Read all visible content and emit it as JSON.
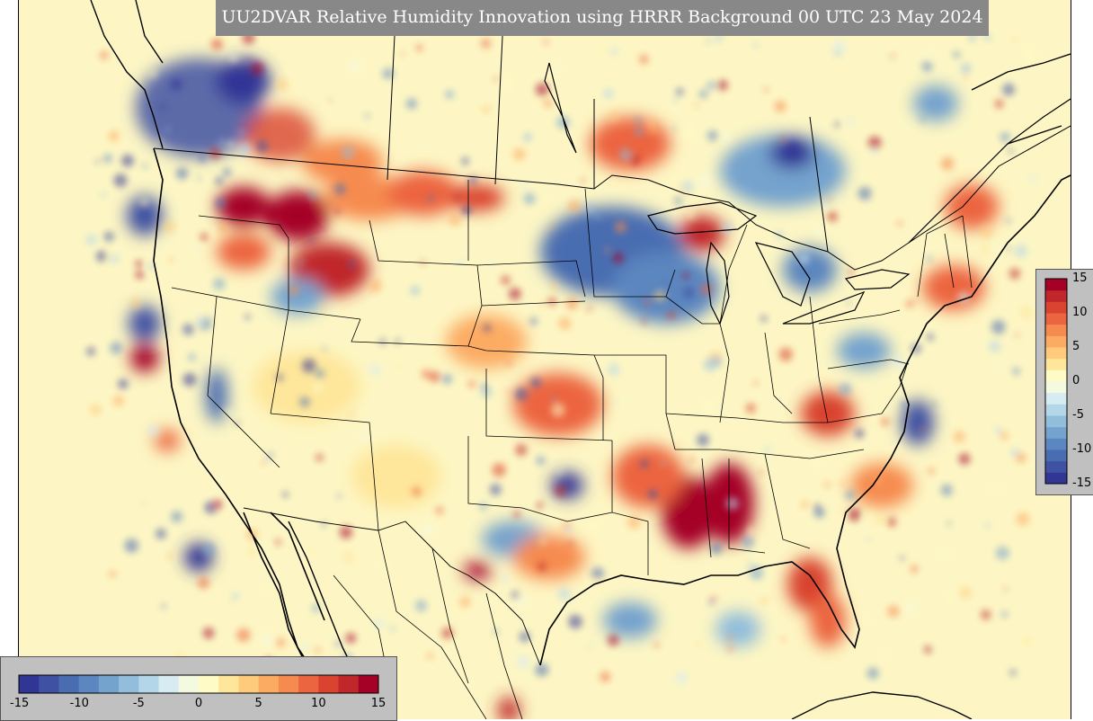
{
  "title": "UU2DVAR Relative Humidity Innovation using HRRR Background 00 UTC 23 May 2024",
  "colorbar": {
    "min": -15,
    "max": 15,
    "colors": [
      "#313695",
      "#3f51a3",
      "#4a6db1",
      "#5b86bf",
      "#74a3cd",
      "#93bedb",
      "#b3d6e8",
      "#d6ebf2",
      "#f4fae0",
      "#fefbc6",
      "#fee69a",
      "#fdcb7b",
      "#fcab63",
      "#f68b50",
      "#ec6541",
      "#d9432f",
      "#c0272b",
      "#a50026"
    ],
    "vertical_ticks": [
      "15",
      "10",
      "5",
      "0",
      "-5",
      "-10",
      "-15"
    ],
    "horizontal_ticks": [
      "-15",
      "-10",
      "-5",
      "0",
      "5",
      "10",
      "15"
    ]
  },
  "map": {
    "background_color": "#fdf6c4",
    "boundary_color": "#000000"
  }
}
